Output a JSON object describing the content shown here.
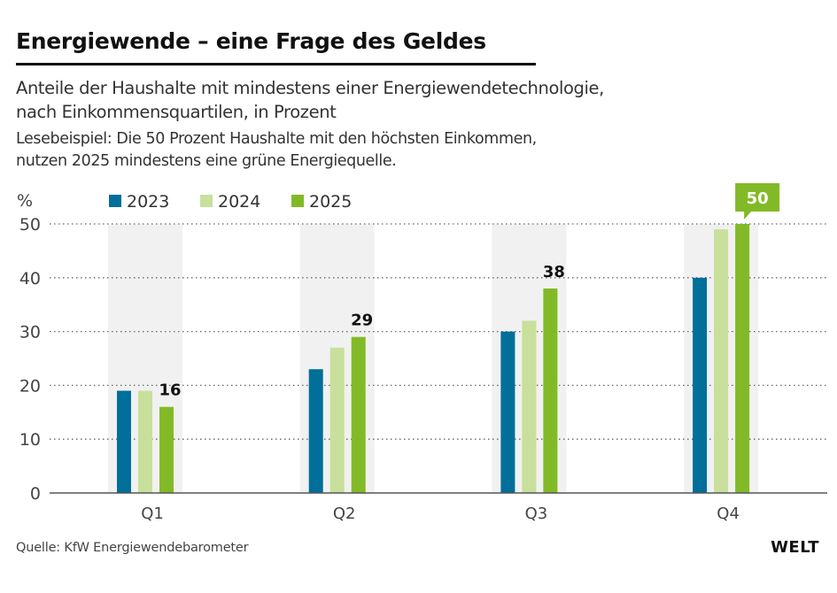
{
  "header": {
    "title": "Energiewende – eine Frage des Geldes",
    "subtitle_line1": "Anteile der Haushalte mit mindestens einer Energiewendetechnologie,",
    "subtitle_line2": "nach Einkommensquartilen, in Prozent",
    "note_line1": "Lesebeispiel: Die 50 Prozent Haushalte mit den höchsten Einkommen,",
    "note_line2": "nutzen 2025 mindestens eine grüne Energiequelle."
  },
  "footer": {
    "source": "Quelle: KfW Energiewendebarometer",
    "logo": "WELT"
  },
  "chart_data": {
    "type": "bar",
    "title": "Energiewende – eine Frage des Geldes",
    "xlabel": "",
    "ylabel": "%",
    "ylim": [
      0,
      50
    ],
    "yticks": [
      0,
      10,
      20,
      30,
      40,
      50
    ],
    "grid": true,
    "legend_position": "top-left",
    "categories": [
      "Q1",
      "Q2",
      "Q3",
      "Q4"
    ],
    "series": [
      {
        "name": "2023",
        "color": "#006f9a",
        "values": [
          19,
          23,
          30,
          40
        ]
      },
      {
        "name": "2024",
        "color": "#c8e09b",
        "values": [
          19,
          27,
          32,
          49
        ]
      },
      {
        "name": "2025",
        "color": "#82ba27",
        "values": [
          16,
          29,
          38,
          50
        ]
      }
    ],
    "data_labels": [
      {
        "category": "Q1",
        "series": "2025",
        "text": "16",
        "style": "plain"
      },
      {
        "category": "Q2",
        "series": "2025",
        "text": "29",
        "style": "plain"
      },
      {
        "category": "Q3",
        "series": "2025",
        "text": "38",
        "style": "plain"
      },
      {
        "category": "Q4",
        "series": "2025",
        "text": "50",
        "style": "callout"
      }
    ],
    "band_color": "#f1f1f1"
  }
}
